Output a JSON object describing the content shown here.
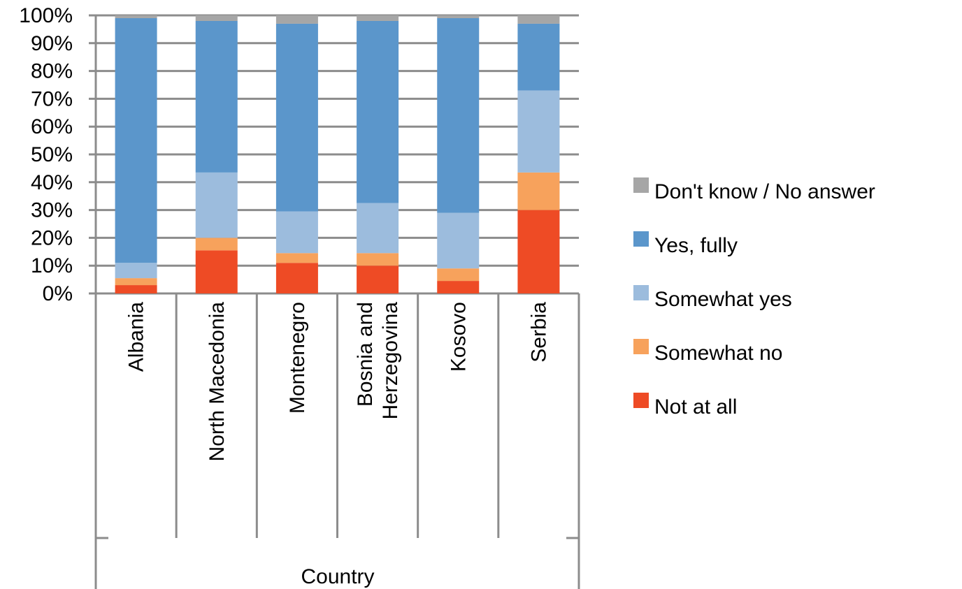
{
  "chart_data": {
    "type": "bar",
    "stacked": true,
    "percent_stacked": true,
    "categories": [
      "Albania",
      "North Macedonia",
      "Montenegro",
      "Bosnia and Herzegovina",
      "Kosovo",
      "Serbia"
    ],
    "category_label_lines": [
      [
        "Albania"
      ],
      [
        "North Macedonia"
      ],
      [
        "Montenegro"
      ],
      [
        "Bosnia and",
        "Herzegovina"
      ],
      [
        "Kosovo"
      ],
      [
        "Serbia"
      ]
    ],
    "series": [
      {
        "name": "Not at all",
        "color": "#EE4B25",
        "values": [
          3,
          15.5,
          11,
          10,
          4.5,
          30
        ]
      },
      {
        "name": "Somewhat no",
        "color": "#F7A25C",
        "values": [
          2.5,
          4.5,
          3.5,
          4.5,
          4.5,
          13.5
        ]
      },
      {
        "name": "Somewhat yes",
        "color": "#9CBCDD",
        "values": [
          5.5,
          23.5,
          15,
          18,
          20,
          29.5
        ]
      },
      {
        "name": "Yes, fully",
        "color": "#5B96CB",
        "values": [
          88,
          54.5,
          67.5,
          65.5,
          70,
          24
        ]
      },
      {
        "name": "Don't know / No answer",
        "color": "#A6A6A6",
        "values": [
          1,
          2,
          3,
          2,
          1,
          3
        ]
      }
    ],
    "legend_order": [
      "Don't know / No answer",
      "Yes, fully",
      "Somewhat yes",
      "Somewhat no",
      "Not at all"
    ],
    "legend_position": "right",
    "y_tick_labels": [
      "0%",
      "10%",
      "20%",
      "30%",
      "40%",
      "50%",
      "60%",
      "70%",
      "80%",
      "90%",
      "100%"
    ],
    "ylim": [
      0,
      100
    ],
    "xlabel": "Country",
    "grid": true,
    "gridline_color": "#8C8C8C"
  }
}
